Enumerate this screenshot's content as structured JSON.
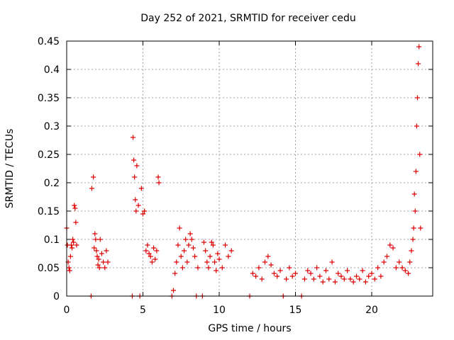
{
  "chart_data": {
    "type": "scatter",
    "title": "Day 252 of 2021, SRMTID for receiver cedu",
    "xlabel": "GPS time / hours",
    "ylabel": "SRMTID / TECUs",
    "xlim": [
      0,
      24
    ],
    "ylim": [
      0,
      0.45
    ],
    "xticks": [
      0,
      5,
      10,
      15,
      20
    ],
    "yticks": [
      0,
      0.05,
      0.1,
      0.15,
      0.2,
      0.25,
      0.3,
      0.35,
      0.4,
      0.45
    ],
    "xtick_labels": [
      "0",
      "5",
      "10",
      "15",
      "20"
    ],
    "ytick_labels": [
      "0",
      "0.05",
      "0.1",
      "0.15",
      "0.2",
      "0.25",
      "0.3",
      "0.35",
      "0.4",
      "0.45"
    ],
    "grid": true,
    "marker": "+",
    "color": "#dd0000",
    "series": [
      {
        "name": "SRMTID",
        "x": [
          0.0,
          0.05,
          0.1,
          0.15,
          0.2,
          0.25,
          0.3,
          0.35,
          0.4,
          0.45,
          0.5,
          0.55,
          0.6,
          0.65,
          1.6,
          1.65,
          1.75,
          1.8,
          1.85,
          1.9,
          1.95,
          2.0,
          2.05,
          2.1,
          2.15,
          2.2,
          2.3,
          2.4,
          2.5,
          2.6,
          2.7,
          4.3,
          4.35,
          4.4,
          4.45,
          4.5,
          4.55,
          4.6,
          4.7,
          4.8,
          4.9,
          5.0,
          5.1,
          5.2,
          5.3,
          5.4,
          5.5,
          5.6,
          5.7,
          5.8,
          5.9,
          6.0,
          6.05,
          6.9,
          7.0,
          7.1,
          7.2,
          7.3,
          7.4,
          7.5,
          7.6,
          7.7,
          7.8,
          7.9,
          8.0,
          8.1,
          8.2,
          8.3,
          8.4,
          8.5,
          8.6,
          8.9,
          9.0,
          9.1,
          9.2,
          9.3,
          9.4,
          9.5,
          9.6,
          9.7,
          9.8,
          9.9,
          10.0,
          10.2,
          10.4,
          10.6,
          10.8,
          12.0,
          12.2,
          12.4,
          12.6,
          12.8,
          13.0,
          13.2,
          13.4,
          13.6,
          13.8,
          14.0,
          14.2,
          14.4,
          14.6,
          14.8,
          15.0,
          15.4,
          15.6,
          15.8,
          16.0,
          16.2,
          16.4,
          16.6,
          16.8,
          17.0,
          17.2,
          17.4,
          17.6,
          17.8,
          18.0,
          18.2,
          18.4,
          18.6,
          18.8,
          19.0,
          19.2,
          19.4,
          19.6,
          19.8,
          20.0,
          20.2,
          20.4,
          20.6,
          20.8,
          21.0,
          21.2,
          21.4,
          21.6,
          21.8,
          22.0,
          22.2,
          22.4,
          22.5,
          22.6,
          22.7,
          22.75,
          22.8,
          22.85,
          22.9,
          22.95,
          23.0,
          23.05,
          23.1,
          23.15,
          23.2
        ],
        "y": [
          0.12,
          0.09,
          0.06,
          0.05,
          0.045,
          0.07,
          0.09,
          0.085,
          0.1,
          0.095,
          0.16,
          0.155,
          0.13,
          0.09,
          0.0,
          0.19,
          0.21,
          0.085,
          0.11,
          0.1,
          0.08,
          0.07,
          0.055,
          0.065,
          0.05,
          0.1,
          0.075,
          0.06,
          0.05,
          0.08,
          0.06,
          0.0,
          0.28,
          0.24,
          0.21,
          0.17,
          0.15,
          0.23,
          0.16,
          0.0,
          0.19,
          0.145,
          0.15,
          0.08,
          0.09,
          0.075,
          0.07,
          0.06,
          0.085,
          0.065,
          0.08,
          0.21,
          0.2,
          0.0,
          0.01,
          0.04,
          0.06,
          0.09,
          0.12,
          0.07,
          0.05,
          0.08,
          0.1,
          0.06,
          0.09,
          0.11,
          0.1,
          0.085,
          0.07,
          0.0,
          0.05,
          0.0,
          0.095,
          0.08,
          0.06,
          0.05,
          0.07,
          0.095,
          0.09,
          0.06,
          0.045,
          0.075,
          0.065,
          0.05,
          0.09,
          0.07,
          0.08,
          0.0,
          0.04,
          0.035,
          0.05,
          0.03,
          0.06,
          0.07,
          0.055,
          0.04,
          0.035,
          0.045,
          0.0,
          0.03,
          0.05,
          0.035,
          0.04,
          0.0,
          0.03,
          0.045,
          0.04,
          0.03,
          0.05,
          0.035,
          0.025,
          0.045,
          0.03,
          0.06,
          0.025,
          0.04,
          0.035,
          0.03,
          0.045,
          0.03,
          0.025,
          0.035,
          0.03,
          0.045,
          0.025,
          0.035,
          0.04,
          0.03,
          0.05,
          0.035,
          0.06,
          0.07,
          0.09,
          0.085,
          0.05,
          0.06,
          0.05,
          0.045,
          0.04,
          0.06,
          0.08,
          0.1,
          0.12,
          0.18,
          0.15,
          0.22,
          0.3,
          0.35,
          0.41,
          0.44,
          0.25,
          0.12
        ]
      }
    ]
  }
}
